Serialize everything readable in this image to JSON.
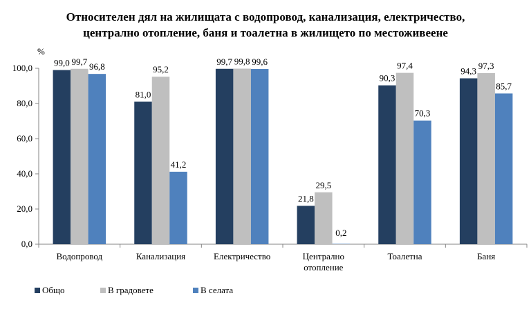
{
  "chart_data": {
    "type": "bar",
    "title_lines": [
      "Относителен дял на жилищата с водопровод, канализация, електричество,",
      "централно отопление, баня и тоалетна в жилището по местоживеене"
    ],
    "ylabel": "%",
    "ylim": [
      0,
      100
    ],
    "yticks": [
      "0,0",
      "20,0",
      "40,0",
      "60,0",
      "80,0",
      "100,0"
    ],
    "ytick_values": [
      0,
      20,
      40,
      60,
      80,
      100
    ],
    "categories": [
      [
        "Водопровод"
      ],
      [
        "Канализация"
      ],
      [
        "Електричество"
      ],
      [
        "Централно",
        "отопление"
      ],
      [
        "Тоалетна"
      ],
      [
        "Баня"
      ]
    ],
    "series": [
      {
        "name": "Общо",
        "color": "#243F60",
        "values": [
          99.0,
          81.0,
          99.7,
          21.8,
          90.3,
          94.3
        ],
        "labels": [
          "99,0",
          "81,0",
          "99,7",
          "21,8",
          "90,3",
          "94,3"
        ]
      },
      {
        "name": "В градовете",
        "color": "#BFBFBF",
        "values": [
          99.7,
          95.2,
          99.8,
          29.5,
          97.4,
          97.3
        ],
        "labels": [
          "99,7",
          "95,2",
          "99,8",
          "29,5",
          "97,4",
          "97,3"
        ]
      },
      {
        "name": "В селата",
        "color": "#4F81BD",
        "values": [
          96.8,
          41.2,
          99.6,
          0.2,
          70.3,
          85.7
        ],
        "labels": [
          "96,8",
          "41,2",
          "99,6",
          "0,2",
          "70,3",
          "85,7"
        ]
      }
    ],
    "grid": false,
    "legend_position": "bottom-left"
  }
}
